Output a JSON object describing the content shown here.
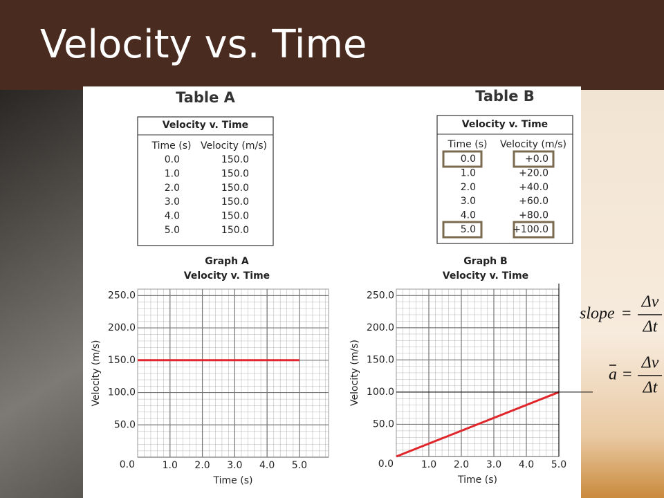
{
  "header": {
    "title": "Velocity vs. Time"
  },
  "tables": [
    {
      "title": "Table A",
      "caption": "Velocity v. Time",
      "columns": [
        "Time (s)",
        "Velocity (m/s)"
      ],
      "rows": [
        [
          "0.0",
          "150.0"
        ],
        [
          "1.0",
          "150.0"
        ],
        [
          "2.0",
          "150.0"
        ],
        [
          "3.0",
          "150.0"
        ],
        [
          "4.0",
          "150.0"
        ],
        [
          "5.0",
          "150.0"
        ]
      ]
    },
    {
      "title": "Table B",
      "caption": "Velocity v. Time",
      "columns": [
        "Time (s)",
        "Velocity (m/s)"
      ],
      "rows": [
        [
          "0.0",
          "+0.0"
        ],
        [
          "1.0",
          "+20.0"
        ],
        [
          "2.0",
          "+40.0"
        ],
        [
          "3.0",
          "+60.0"
        ],
        [
          "4.0",
          "+80.0"
        ],
        [
          "5.0",
          "+100.0"
        ]
      ]
    }
  ],
  "chart_data": [
    {
      "type": "line",
      "title": "Graph A",
      "subtitle": "Velocity v. Time",
      "x_label": "Time (s)",
      "y_label": "Velocity (m/s)",
      "x": [
        0,
        5
      ],
      "series": [
        {
          "name": "Velocity",
          "color": "#e0262b",
          "values": [
            150,
            150
          ]
        }
      ],
      "xlim": [
        0,
        5.9
      ],
      "ylim": [
        0,
        260
      ],
      "grid": true,
      "xticks": [
        {
          "value": 1,
          "label": "1.0"
        },
        {
          "value": 2,
          "label": "2.0"
        },
        {
          "value": 3,
          "label": "3.0"
        },
        {
          "value": 4,
          "label": "4.0"
        },
        {
          "value": 5,
          "label": "5.0"
        }
      ],
      "yticks": [
        {
          "value": 0,
          "label": "0.0"
        },
        {
          "value": 50,
          "label": "50.0"
        },
        {
          "value": 100,
          "label": "100.0"
        },
        {
          "value": 150,
          "label": "150.0"
        },
        {
          "value": 200,
          "label": "200.0"
        },
        {
          "value": 250,
          "label": "250.0"
        }
      ]
    },
    {
      "type": "line",
      "title": "Graph B",
      "subtitle": "Velocity v. Time",
      "x_label": "Time (s)",
      "y_label": "Velocity (m/s)",
      "x": [
        0,
        5
      ],
      "series": [
        {
          "name": "Velocity",
          "color": "#e0262b",
          "values": [
            0,
            100
          ]
        }
      ],
      "xlim": [
        0,
        5
      ],
      "ylim": [
        0,
        260
      ],
      "grid": true,
      "xticks": [
        {
          "value": 1,
          "label": "1.0"
        },
        {
          "value": 2,
          "label": "2.0"
        },
        {
          "value": 3,
          "label": "3.0"
        },
        {
          "value": 4,
          "label": "4.0"
        },
        {
          "value": 5,
          "label": "5.0"
        }
      ],
      "yticks": [
        {
          "value": 0,
          "label": "0.0"
        },
        {
          "value": 50,
          "label": "50.0"
        },
        {
          "value": 100,
          "label": "100.0"
        },
        {
          "value": 150,
          "label": "150.0"
        },
        {
          "value": 200,
          "label": "200.0"
        },
        {
          "value": 250,
          "label": "250.0"
        }
      ]
    }
  ],
  "formulas": [
    {
      "lhs": "slope",
      "eq": "=",
      "num": "Δv",
      "den": "Δt"
    },
    {
      "lhs": "a",
      "eq": "=",
      "num": "Δv",
      "den": "Δt"
    }
  ]
}
